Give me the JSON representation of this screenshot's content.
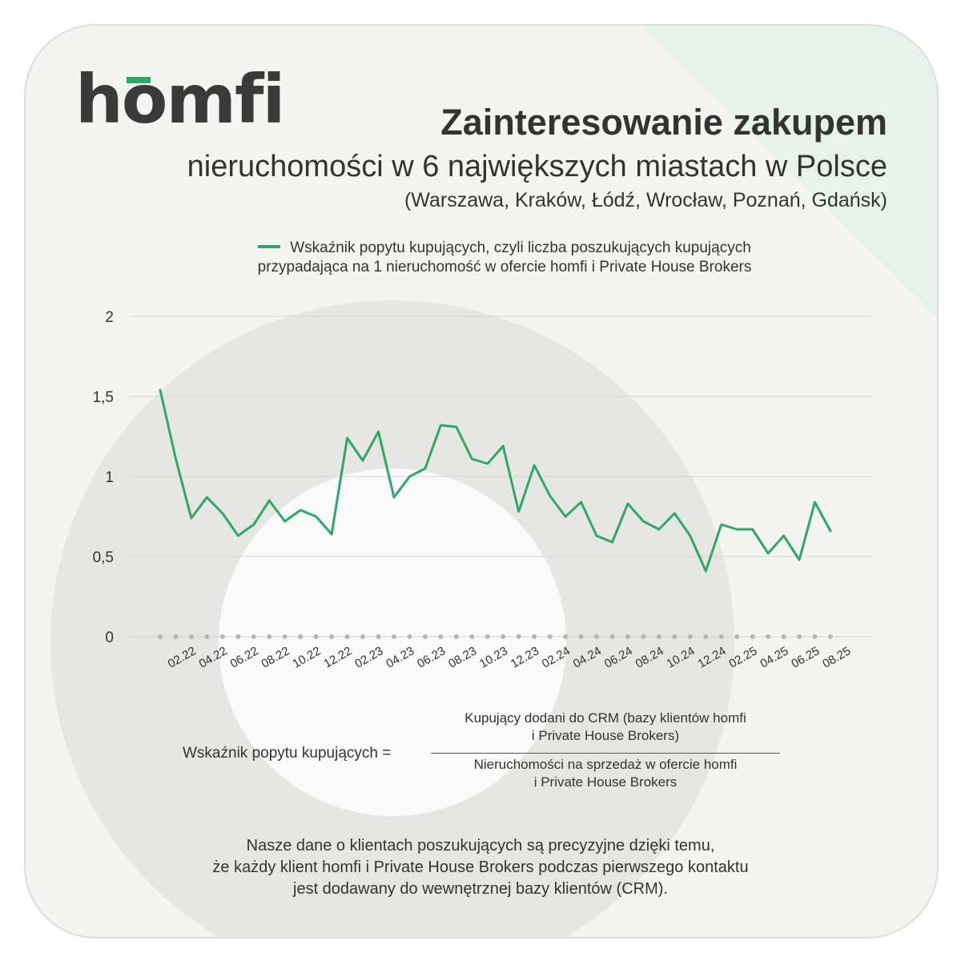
{
  "brand": {
    "logo_text": "homfi",
    "accent_color": "#2fa866"
  },
  "header": {
    "title": "Zainteresowanie zakupem",
    "subtitle": "nieruchomości w 6 największych miastach w Polsce",
    "cities": "(Warszawa, Kraków, Łódź, Wrocław, Poznań, Gdańsk)"
  },
  "chart_data": {
    "type": "line",
    "title": "",
    "xlabel": "",
    "ylabel": "",
    "ylim": [
      0,
      2
    ],
    "yticks": [
      "0",
      "0,5",
      "1",
      "1,5",
      "2"
    ],
    "ytick_values": [
      0,
      0.5,
      1,
      1.5,
      2
    ],
    "grid": true,
    "legend_position": "top-center",
    "xtick_labels": [
      "02.22",
      "04.22",
      "06.22",
      "08.22",
      "10.22",
      "12.22",
      "02.23",
      "04.23",
      "06.23",
      "08.23",
      "10.23",
      "12.23",
      "02.24",
      "04.24",
      "06.24",
      "08.24",
      "10.24",
      "12.24",
      "02.25",
      "04.25",
      "06.25",
      "08.25"
    ],
    "x": [
      "01.22",
      "02.22",
      "03.22",
      "04.22",
      "05.22",
      "06.22",
      "07.22",
      "08.22",
      "09.22",
      "10.22",
      "11.22",
      "12.22",
      "01.23",
      "02.23",
      "03.23",
      "04.23",
      "05.23",
      "06.23",
      "07.23",
      "08.23",
      "09.23",
      "10.23",
      "11.23",
      "12.23",
      "01.24",
      "02.24",
      "03.24",
      "04.24",
      "05.24",
      "06.24",
      "07.24",
      "08.24",
      "09.24",
      "10.24",
      "11.24",
      "12.24",
      "01.25",
      "02.25",
      "03.25",
      "04.25",
      "05.25",
      "06.25",
      "07.25",
      "08.25"
    ],
    "series": [
      {
        "name": "Wskaźnik popytu kupujących, czyli liczba poszukujących kupujących przypadająca na 1 nieruchomość w ofercie homfi i Private House Brokers",
        "color": "#2fa866",
        "values": [
          1.54,
          1.11,
          0.74,
          0.87,
          0.77,
          0.63,
          0.7,
          0.85,
          0.72,
          0.79,
          0.75,
          0.64,
          1.24,
          1.1,
          1.28,
          0.87,
          1.0,
          1.05,
          1.32,
          1.31,
          1.11,
          1.08,
          1.19,
          0.78,
          1.07,
          0.88,
          0.75,
          0.84,
          0.63,
          0.59,
          0.83,
          0.72,
          0.67,
          0.77,
          0.63,
          0.41,
          0.7,
          0.67,
          0.67,
          0.52,
          0.63,
          0.48,
          0.84,
          0.66
        ]
      }
    ]
  },
  "legend": {
    "line1": "Wskaźnik popytu kupujących, czyli liczba poszukujących kupujących",
    "line2": "przypadająca na 1 nieruchomość w ofercie homfi i Private House Brokers"
  },
  "formula": {
    "label": "Wskaźnik popytu kupujących =",
    "numerator_line1": "Kupujący dodani do CRM (bazy klientów homfi",
    "numerator_line2": "i Private House Brokers)",
    "denominator_line1": "Nieruchomości na sprzedaż w ofercie homfi",
    "denominator_line2": "i Private House Brokers"
  },
  "footer": {
    "line1": "Nasze dane o klientach poszukujących są precyzyjne dzięki temu,",
    "line2": "że każdy klient homfi i Private House Brokers podczas pierwszego kontaktu",
    "line3": "jest dodawany do wewnętrznej bazy klientów (CRM)."
  }
}
